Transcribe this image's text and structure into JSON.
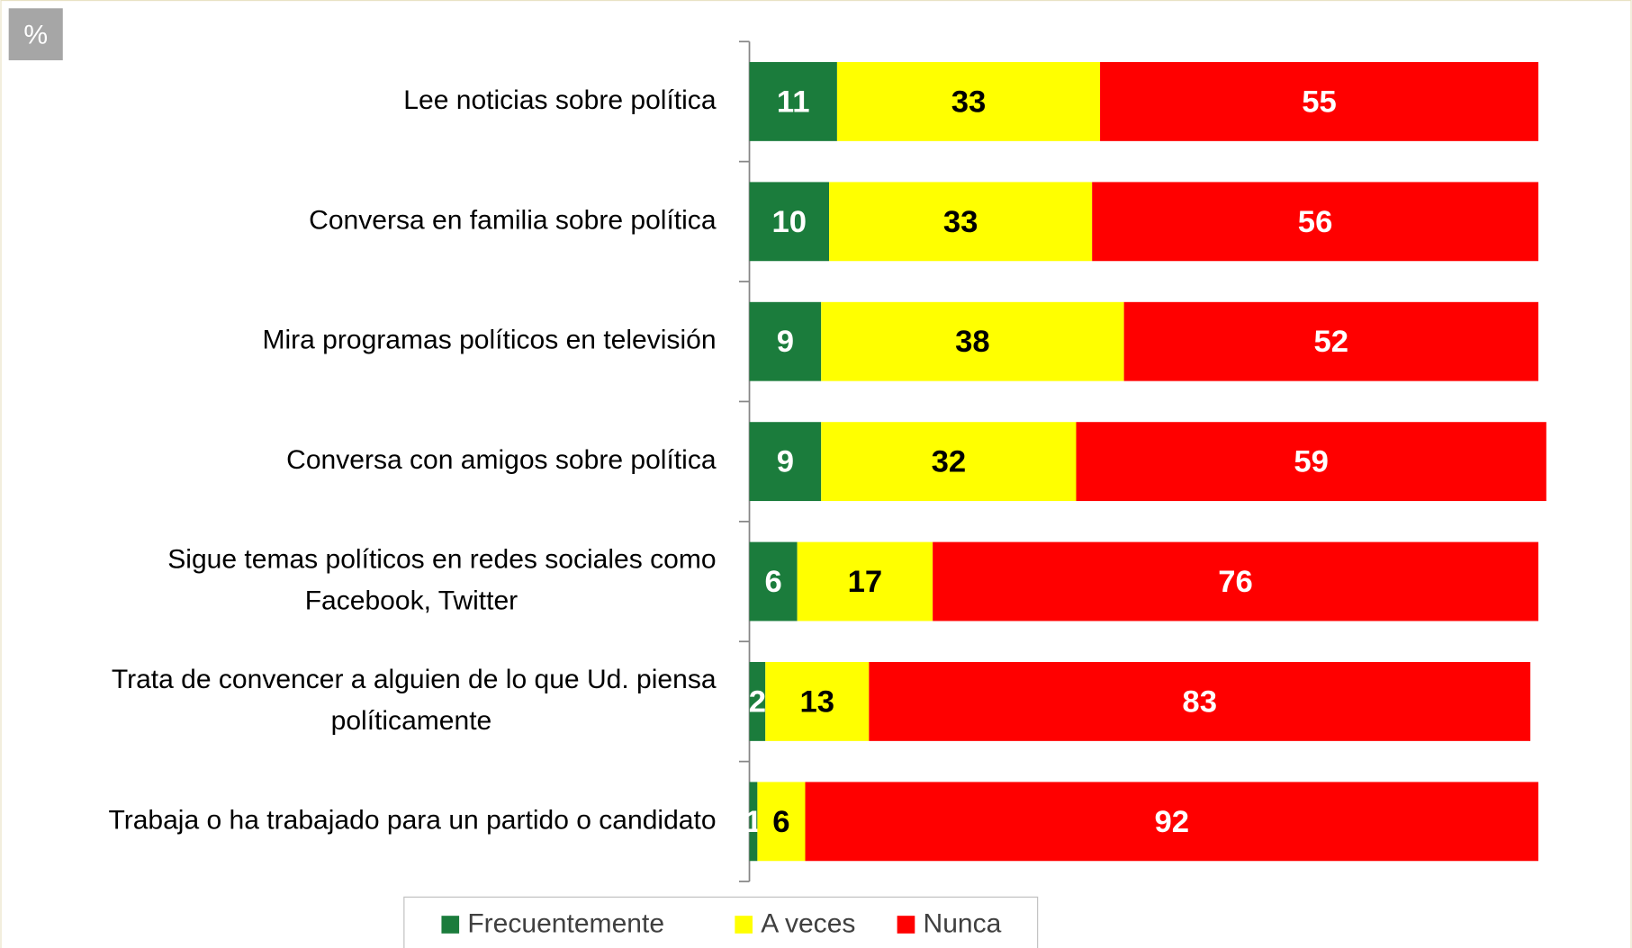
{
  "chart_data": {
    "type": "stacked-barh",
    "unit_label": "%",
    "categories": [
      [
        "Lee noticias sobre política"
      ],
      [
        "Conversa en familia sobre política"
      ],
      [
        "Mira programas políticos en televisión"
      ],
      [
        "Conversa con amigos sobre política"
      ],
      [
        "Sigue temas políticos en redes sociales como",
        "Facebook, Twitter"
      ],
      [
        "Trata de convencer a alguien de lo que Ud. piensa",
        "políticamente"
      ],
      [
        "Trabaja o ha trabajado para un partido o candidato"
      ]
    ],
    "series": [
      {
        "name": "Frecuentemente",
        "color": "#1b7c3c",
        "label_color": "#ffffff",
        "values": [
          11,
          10,
          9,
          9,
          6,
          2,
          1
        ]
      },
      {
        "name": "A veces",
        "color": "#ffff00",
        "label_color": "#000000",
        "values": [
          33,
          33,
          38,
          32,
          17,
          13,
          6
        ]
      },
      {
        "name": "Nunca",
        "color": "#ff0000",
        "label_color": "#ffffff",
        "values": [
          55,
          56,
          52,
          59,
          76,
          83,
          92
        ]
      }
    ],
    "xlim": [
      0,
      100
    ],
    "legend": "bottom"
  }
}
